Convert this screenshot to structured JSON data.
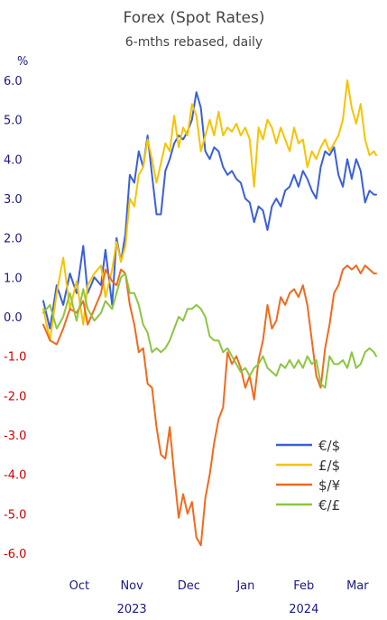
{
  "chart_data": {
    "type": "line",
    "title": "Forex (Spot Rates)",
    "subtitle": "6-mths rebased, daily",
    "ylabel": "%",
    "ylim": [
      -6.0,
      6.0
    ],
    "y_ticks": [
      "6.0",
      "5.0",
      "4.0",
      "3.0",
      "2.0",
      "1.0",
      "0.0",
      "-1.0",
      "-2.0",
      "-3.0",
      "-4.0",
      "-5.0",
      "-6.0"
    ],
    "y_tick_values": [
      6,
      5,
      4,
      3,
      2,
      1,
      0,
      -1,
      -2,
      -3,
      -4,
      -5,
      -6
    ],
    "positive_tick_color": "#1a1a80",
    "negative_tick_color": "#cc0000",
    "x_ticks": [
      "Oct",
      "Nov",
      "Dec",
      "Jan",
      "Feb",
      "Mar"
    ],
    "x_tick_positions": [
      0.162,
      0.399,
      0.656,
      0.912,
      1.174,
      1.416
    ],
    "years": [
      "2023",
      "2024"
    ],
    "year_positions": [
      0.399,
      1.174
    ],
    "x_range": [
      0,
      1.5
    ],
    "grid": false,
    "legend_position": "bottom-right",
    "series": [
      {
        "name": "€/$",
        "color": "#3a5fd9",
        "x": [
          0,
          0.03,
          0.06,
          0.09,
          0.12,
          0.15,
          0.18,
          0.2,
          0.23,
          0.26,
          0.28,
          0.31,
          0.33,
          0.35,
          0.37,
          0.39,
          0.41,
          0.43,
          0.45,
          0.47,
          0.49,
          0.51,
          0.53,
          0.55,
          0.57,
          0.59,
          0.61,
          0.63,
          0.65,
          0.67,
          0.69,
          0.71,
          0.73,
          0.75,
          0.77,
          0.79,
          0.81,
          0.83,
          0.85,
          0.87,
          0.89,
          0.91,
          0.93,
          0.95,
          0.97,
          0.99,
          1.01,
          1.03,
          1.05,
          1.07,
          1.09,
          1.11,
          1.13,
          1.15,
          1.17,
          1.19,
          1.21,
          1.23,
          1.25,
          1.27,
          1.29,
          1.31,
          1.33,
          1.35,
          1.37,
          1.39,
          1.41,
          1.43,
          1.45,
          1.47,
          1.49,
          1.5
        ],
        "values": [
          0.4,
          -0.3,
          0.8,
          0.3,
          1.1,
          0.6,
          1.8,
          0.6,
          1.0,
          0.8,
          1.7,
          0.3,
          2.0,
          1.4,
          2.1,
          3.6,
          3.4,
          4.2,
          3.8,
          4.6,
          3.6,
          2.6,
          2.6,
          3.7,
          4.0,
          4.4,
          4.6,
          4.5,
          4.7,
          5.0,
          5.7,
          5.3,
          4.2,
          4.0,
          4.3,
          4.2,
          3.8,
          3.6,
          3.7,
          3.5,
          3.4,
          3.0,
          2.9,
          2.4,
          2.8,
          2.7,
          2.2,
          2.8,
          3.0,
          2.8,
          3.2,
          3.3,
          3.6,
          3.3,
          3.7,
          3.5,
          3.2,
          3.0,
          3.8,
          4.2,
          4.1,
          4.3,
          3.6,
          3.3,
          4.0,
          3.5,
          4.0,
          3.7,
          2.9,
          3.2,
          3.1,
          3.1
        ]
      },
      {
        "name": "£/$",
        "color": "#f5c400",
        "x": [
          0,
          0.03,
          0.06,
          0.09,
          0.12,
          0.15,
          0.18,
          0.2,
          0.23,
          0.26,
          0.28,
          0.31,
          0.33,
          0.35,
          0.37,
          0.39,
          0.41,
          0.43,
          0.45,
          0.47,
          0.49,
          0.51,
          0.53,
          0.55,
          0.57,
          0.59,
          0.61,
          0.63,
          0.65,
          0.67,
          0.69,
          0.71,
          0.73,
          0.75,
          0.77,
          0.79,
          0.81,
          0.83,
          0.85,
          0.87,
          0.89,
          0.91,
          0.93,
          0.95,
          0.97,
          0.99,
          1.01,
          1.03,
          1.05,
          1.07,
          1.09,
          1.11,
          1.13,
          1.15,
          1.17,
          1.19,
          1.21,
          1.23,
          1.25,
          1.27,
          1.29,
          1.31,
          1.33,
          1.35,
          1.37,
          1.39,
          1.41,
          1.43,
          1.45,
          1.47,
          1.49,
          1.5
        ],
        "values": [
          0.2,
          -0.6,
          0.6,
          1.5,
          0.2,
          0.9,
          -0.2,
          0.8,
          1.1,
          1.3,
          0.5,
          1.2,
          1.9,
          1.4,
          1.8,
          3.0,
          2.8,
          3.6,
          3.8,
          4.5,
          4.0,
          3.4,
          3.9,
          4.4,
          4.2,
          5.1,
          4.3,
          4.8,
          4.6,
          5.4,
          5.1,
          4.2,
          4.6,
          5.0,
          4.6,
          5.2,
          4.6,
          4.8,
          4.7,
          4.9,
          4.6,
          4.8,
          4.5,
          3.3,
          4.8,
          4.5,
          5.0,
          4.8,
          4.4,
          4.8,
          4.5,
          4.2,
          4.8,
          4.4,
          4.5,
          3.8,
          4.2,
          4.0,
          4.3,
          4.5,
          4.2,
          4.4,
          4.6,
          5.0,
          6.0,
          5.3,
          4.9,
          5.4,
          4.5,
          4.1,
          4.2,
          4.1
        ]
      },
      {
        "name": "$/¥",
        "color": "#f06a1e",
        "x": [
          0,
          0.03,
          0.06,
          0.09,
          0.12,
          0.15,
          0.18,
          0.2,
          0.23,
          0.26,
          0.28,
          0.31,
          0.33,
          0.35,
          0.37,
          0.39,
          0.41,
          0.43,
          0.45,
          0.47,
          0.49,
          0.51,
          0.53,
          0.55,
          0.57,
          0.59,
          0.61,
          0.63,
          0.65,
          0.67,
          0.69,
          0.71,
          0.73,
          0.75,
          0.77,
          0.79,
          0.81,
          0.83,
          0.85,
          0.87,
          0.89,
          0.91,
          0.93,
          0.95,
          0.97,
          0.99,
          1.01,
          1.03,
          1.05,
          1.07,
          1.09,
          1.11,
          1.13,
          1.15,
          1.17,
          1.19,
          1.21,
          1.23,
          1.25,
          1.27,
          1.29,
          1.31,
          1.33,
          1.35,
          1.37,
          1.39,
          1.41,
          1.43,
          1.45,
          1.47,
          1.49,
          1.5
        ],
        "values": [
          -0.2,
          -0.6,
          -0.7,
          -0.3,
          0.2,
          0.1,
          0.4,
          -0.2,
          0.2,
          0.6,
          1.2,
          0.9,
          0.8,
          1.2,
          1.1,
          0.3,
          -0.2,
          -0.9,
          -0.8,
          -1.7,
          -1.8,
          -2.8,
          -3.5,
          -3.6,
          -2.8,
          -4.0,
          -5.1,
          -4.5,
          -5.0,
          -4.7,
          -5.6,
          -5.8,
          -4.6,
          -4.0,
          -3.2,
          -2.6,
          -2.3,
          -0.9,
          -1.2,
          -1.0,
          -1.3,
          -1.8,
          -1.5,
          -2.1,
          -1.1,
          -0.6,
          0.3,
          -0.3,
          -0.1,
          0.5,
          0.3,
          0.6,
          0.7,
          0.5,
          0.8,
          0.3,
          -0.6,
          -1.5,
          -1.8,
          -0.8,
          -0.2,
          0.6,
          0.8,
          1.2,
          1.3,
          1.2,
          1.3,
          1.1,
          1.3,
          1.2,
          1.1,
          1.1
        ]
      },
      {
        "name": "€/£",
        "color": "#8cc63f",
        "x": [
          0,
          0.03,
          0.06,
          0.09,
          0.12,
          0.15,
          0.18,
          0.2,
          0.23,
          0.26,
          0.28,
          0.31,
          0.33,
          0.35,
          0.37,
          0.39,
          0.41,
          0.43,
          0.45,
          0.47,
          0.49,
          0.51,
          0.53,
          0.55,
          0.57,
          0.59,
          0.61,
          0.63,
          0.65,
          0.67,
          0.69,
          0.71,
          0.73,
          0.75,
          0.77,
          0.79,
          0.81,
          0.83,
          0.85,
          0.87,
          0.89,
          0.91,
          0.93,
          0.95,
          0.97,
          0.99,
          1.01,
          1.03,
          1.05,
          1.07,
          1.09,
          1.11,
          1.13,
          1.15,
          1.17,
          1.19,
          1.21,
          1.23,
          1.25,
          1.27,
          1.29,
          1.31,
          1.33,
          1.35,
          1.37,
          1.39,
          1.41,
          1.43,
          1.45,
          1.47,
          1.49,
          1.5
        ],
        "values": [
          0.1,
          0.3,
          -0.3,
          0.0,
          0.6,
          -0.1,
          0.7,
          0.2,
          -0.1,
          0.1,
          0.4,
          0.2,
          0.6,
          1.0,
          1.1,
          0.6,
          0.6,
          0.3,
          -0.2,
          -0.4,
          -0.9,
          -0.8,
          -0.9,
          -0.8,
          -0.6,
          -0.3,
          0.0,
          -0.1,
          0.2,
          0.2,
          0.3,
          0.2,
          0.0,
          -0.5,
          -0.6,
          -0.6,
          -0.9,
          -0.8,
          -1.0,
          -1.2,
          -1.4,
          -1.3,
          -1.5,
          -1.3,
          -1.2,
          -1.0,
          -1.3,
          -1.4,
          -1.5,
          -1.2,
          -1.3,
          -1.1,
          -1.3,
          -1.1,
          -1.3,
          -1.0,
          -1.2,
          -1.1,
          -1.7,
          -1.8,
          -1.0,
          -1.2,
          -1.2,
          -1.1,
          -1.3,
          -0.9,
          -1.3,
          -1.2,
          -0.9,
          -0.8,
          -0.9,
          -1.0
        ]
      }
    ]
  }
}
